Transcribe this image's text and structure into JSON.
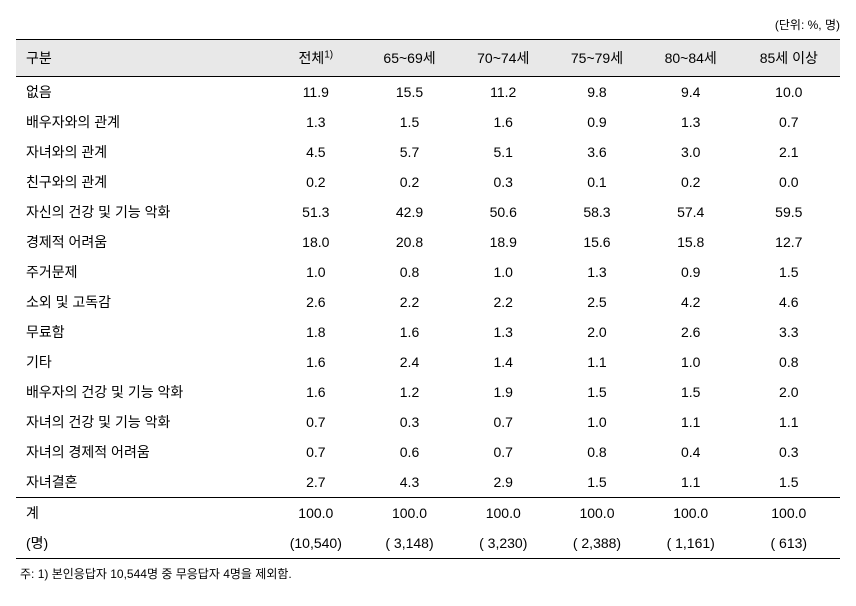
{
  "unit_label": "(단위: %, 명)",
  "columns": {
    "c0": "구분",
    "c1_pre": "전체",
    "c1_sup": "1)",
    "c2": "65~69세",
    "c3": "70~74세",
    "c4": "75~79세",
    "c5": "80~84세",
    "c6": "85세 이상"
  },
  "rows": [
    {
      "label": "없음",
      "v": [
        "11.9",
        "15.5",
        "11.2",
        "9.8",
        "9.4",
        "10.0"
      ]
    },
    {
      "label": "배우자와의 관계",
      "v": [
        "1.3",
        "1.5",
        "1.6",
        "0.9",
        "1.3",
        "0.7"
      ]
    },
    {
      "label": "자녀와의 관계",
      "v": [
        "4.5",
        "5.7",
        "5.1",
        "3.6",
        "3.0",
        "2.1"
      ]
    },
    {
      "label": "친구와의 관계",
      "v": [
        "0.2",
        "0.2",
        "0.3",
        "0.1",
        "0.2",
        "0.0"
      ]
    },
    {
      "label": "자신의 건강 및 기능 악화",
      "v": [
        "51.3",
        "42.9",
        "50.6",
        "58.3",
        "57.4",
        "59.5"
      ]
    },
    {
      "label": "경제적 어려움",
      "v": [
        "18.0",
        "20.8",
        "18.9",
        "15.6",
        "15.8",
        "12.7"
      ]
    },
    {
      "label": "주거문제",
      "v": [
        "1.0",
        "0.8",
        "1.0",
        "1.3",
        "0.9",
        "1.5"
      ]
    },
    {
      "label": "소외 및 고독감",
      "v": [
        "2.6",
        "2.2",
        "2.2",
        "2.5",
        "4.2",
        "4.6"
      ]
    },
    {
      "label": "무료함",
      "v": [
        "1.8",
        "1.6",
        "1.3",
        "2.0",
        "2.6",
        "3.3"
      ]
    },
    {
      "label": "기타",
      "v": [
        "1.6",
        "2.4",
        "1.4",
        "1.1",
        "1.0",
        "0.8"
      ]
    },
    {
      "label": "배우자의 건강 및 기능 악화",
      "v": [
        "1.6",
        "1.2",
        "1.9",
        "1.5",
        "1.5",
        "2.0"
      ]
    },
    {
      "label": "자녀의 건강 및 기능 악화",
      "v": [
        "0.7",
        "0.3",
        "0.7",
        "1.0",
        "1.1",
        "1.1"
      ]
    },
    {
      "label": "자녀의 경제적 어려움",
      "v": [
        "0.7",
        "0.6",
        "0.7",
        "0.8",
        "0.4",
        "0.3"
      ]
    },
    {
      "label": "자녀결혼",
      "v": [
        "2.7",
        "4.3",
        "2.9",
        "1.5",
        "1.1",
        "1.5"
      ]
    }
  ],
  "totals": {
    "sum_label": "계",
    "sum_v": [
      "100.0",
      "100.0",
      "100.0",
      "100.0",
      "100.0",
      "100.0"
    ],
    "count_label": "(명)",
    "count_v": [
      "(10,540)",
      "( 3,148)",
      "( 3,230)",
      "( 2,388)",
      "( 1,161)",
      "(   613)"
    ]
  },
  "footnote": "주: 1) 본인응답자 10,544명 중 무응답자 4명을 제외함.",
  "style": {
    "type": "table",
    "background_color": "#ffffff",
    "header_bg": "#e8e8e8",
    "border_color": "#000000",
    "text_color": "#000000",
    "body_fontsize": 14,
    "unit_fontsize": 12,
    "note_fontsize": 12,
    "col_count": 7,
    "col_align": [
      "left",
      "center",
      "center",
      "center",
      "center",
      "center",
      "center"
    ]
  }
}
